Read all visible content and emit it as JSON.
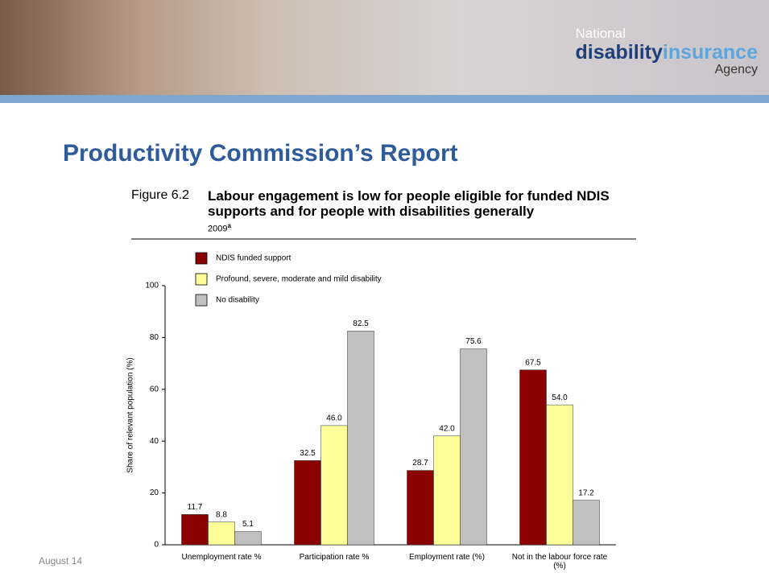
{
  "logo": {
    "line1": "National",
    "word1": "disability",
    "word2": "insurance",
    "line3": "Agency"
  },
  "slide_title": "Productivity Commission’s Report",
  "footer": "August 14",
  "chart_data": {
    "type": "bar",
    "figure_number": "Figure 6.2",
    "title": "Labour engagement is low for people eligible for funded NDIS supports and for people with disabilities generally",
    "subtitle": "2009",
    "subtitle_note": "a",
    "y_label": "Share of relevant population (%)",
    "categories": [
      "Unemployment rate %",
      "Participation rate %",
      "Employment rate (%)",
      "Not in the labour force rate (%)"
    ],
    "series": [
      {
        "name": "NDIS funded support",
        "color": "#8b0000",
        "values": [
          11.7,
          32.5,
          28.7,
          67.5
        ],
        "value_labels": [
          "11.7",
          "32.5",
          "28.7",
          "67.5"
        ]
      },
      {
        "name": "Profound, severe, moderate and mild disability",
        "color": "#ffff99",
        "values": [
          8.8,
          46.0,
          42.0,
          54.0
        ],
        "value_labels": [
          "8.8",
          "46.0",
          "42.0",
          "54.0"
        ]
      },
      {
        "name": "No disability",
        "color": "#c0c0c0",
        "values": [
          5.1,
          82.5,
          75.6,
          17.2
        ],
        "value_labels": [
          "5.1",
          "82.5",
          "75.6",
          "17.2"
        ]
      }
    ],
    "ylim": [
      0,
      100
    ],
    "yticks": [
      0,
      20,
      40,
      60,
      80,
      100
    ],
    "grid": false,
    "legend": "top-left"
  }
}
